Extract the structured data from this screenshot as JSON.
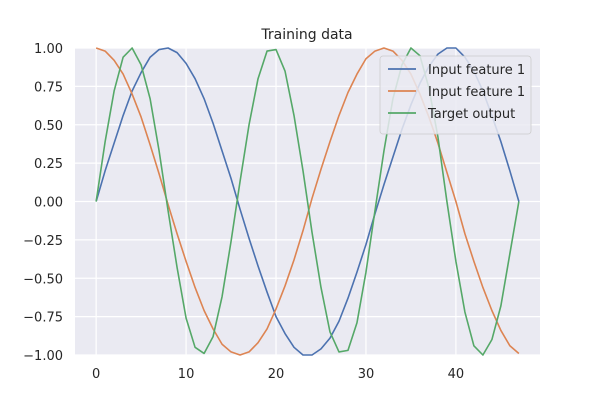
{
  "chart_data": {
    "type": "line",
    "title": "Training data",
    "xlabel": "",
    "ylabel": "",
    "xlim": [
      -2.35,
      49.35
    ],
    "ylim": [
      -1.0,
      1.0
    ],
    "xticks": [
      0,
      10,
      20,
      30,
      40
    ],
    "yticks": [
      -1.0,
      -0.75,
      -0.5,
      -0.25,
      0.0,
      0.25,
      0.5,
      0.75,
      1.0
    ],
    "xtick_labels": [
      "0",
      "10",
      "20",
      "30",
      "40"
    ],
    "ytick_labels": [
      "−1.00",
      "−0.75",
      "−0.50",
      "−0.25",
      "0.00",
      "0.25",
      "0.50",
      "0.75",
      "1.00"
    ],
    "grid": true,
    "legend_position": "top-right",
    "x": [
      0,
      1,
      2,
      3,
      4,
      5,
      6,
      7,
      8,
      9,
      10,
      11,
      12,
      13,
      14,
      15,
      16,
      17,
      18,
      19,
      20,
      21,
      22,
      23,
      24,
      25,
      26,
      27,
      28,
      29,
      30,
      31,
      32,
      33,
      34,
      35,
      36,
      37,
      38,
      39,
      40,
      41,
      42,
      43,
      44,
      45,
      46,
      47
    ],
    "series": [
      {
        "name": "Input feature 1",
        "color": "#4c72b0",
        "values": [
          0.0,
          0.2,
          0.38,
          0.56,
          0.72,
          0.84,
          0.94,
          0.99,
          1.0,
          0.97,
          0.9,
          0.8,
          0.67,
          0.51,
          0.33,
          0.15,
          -0.05,
          -0.24,
          -0.42,
          -0.59,
          -0.75,
          -0.86,
          -0.95,
          -1.0,
          -1.0,
          -0.96,
          -0.89,
          -0.78,
          -0.63,
          -0.46,
          -0.28,
          -0.08,
          0.11,
          0.29,
          0.47,
          0.63,
          0.77,
          0.88,
          0.96,
          1.0,
          1.0,
          0.94,
          0.85,
          0.72,
          0.56,
          0.39,
          0.2,
          0.0
        ]
      },
      {
        "name": "Input feature 1",
        "color": "#dd8452",
        "values": [
          1.0,
          0.98,
          0.92,
          0.83,
          0.7,
          0.55,
          0.37,
          0.18,
          -0.02,
          -0.21,
          -0.39,
          -0.56,
          -0.71,
          -0.83,
          -0.93,
          -0.98,
          -1.0,
          -0.98,
          -0.92,
          -0.83,
          -0.7,
          -0.55,
          -0.38,
          -0.19,
          0.02,
          0.21,
          0.39,
          0.56,
          0.71,
          0.83,
          0.93,
          0.98,
          1.0,
          0.98,
          0.92,
          0.83,
          0.7,
          0.55,
          0.38,
          0.19,
          0.0,
          -0.21,
          -0.39,
          -0.56,
          -0.71,
          -0.84,
          -0.94,
          -0.99
        ]
      },
      {
        "name": "Target output",
        "color": "#55a868",
        "values": [
          0.0,
          0.39,
          0.72,
          0.94,
          1.0,
          0.89,
          0.67,
          0.33,
          -0.06,
          -0.43,
          -0.76,
          -0.95,
          -0.99,
          -0.88,
          -0.62,
          -0.26,
          0.13,
          0.5,
          0.8,
          0.98,
          0.99,
          0.85,
          0.56,
          0.2,
          -0.2,
          -0.56,
          -0.85,
          -0.98,
          -0.97,
          -0.79,
          -0.46,
          -0.06,
          0.33,
          0.67,
          0.89,
          1.0,
          0.95,
          0.74,
          0.42,
          0.0,
          -0.39,
          -0.72,
          -0.94,
          -1.0,
          -0.9,
          -0.68,
          -0.34,
          0.0
        ]
      }
    ]
  }
}
